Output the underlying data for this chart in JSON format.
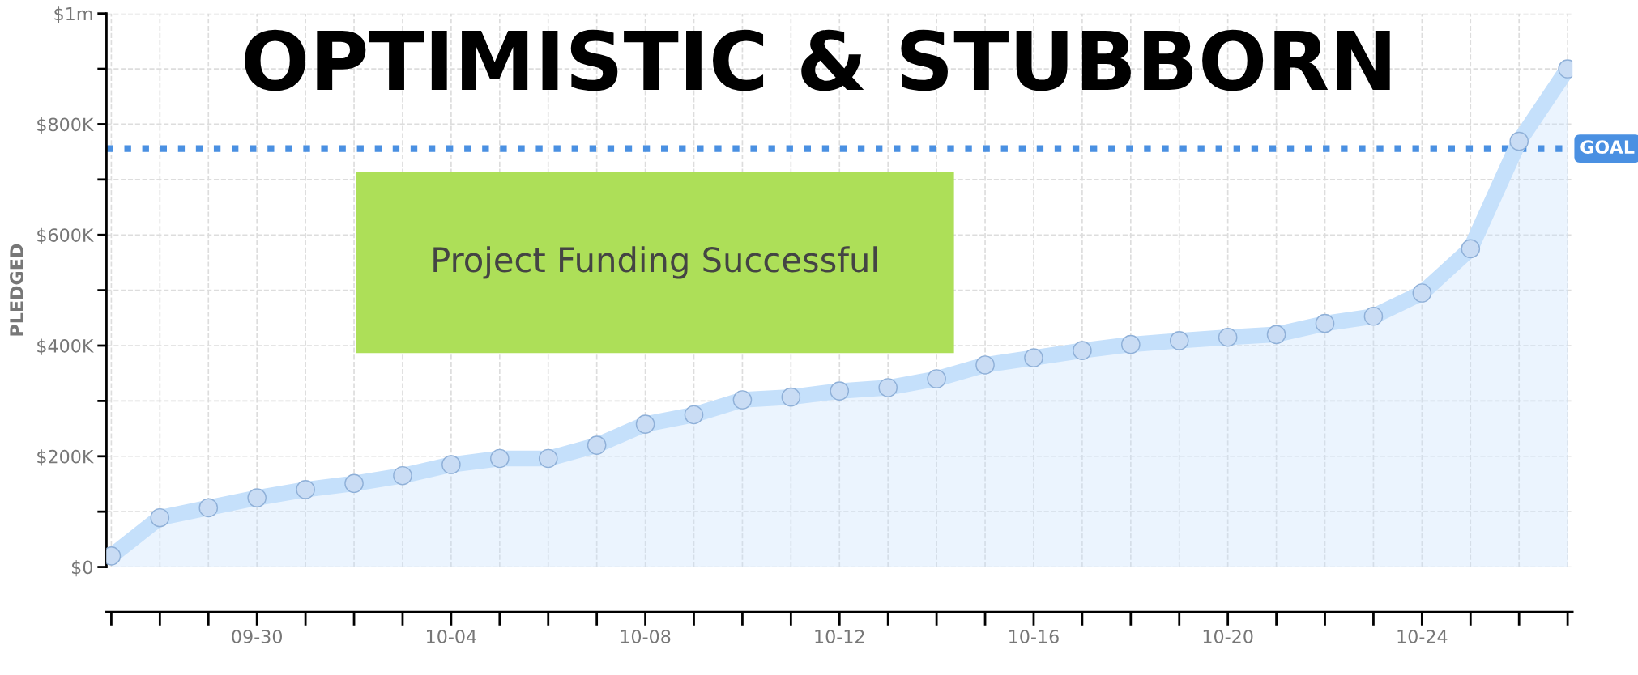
{
  "chart_data": {
    "type": "area",
    "title": "OPTIMISTIC & STUBBORN",
    "ylabel": "PLEDGED",
    "categories": [
      null,
      null,
      null,
      "09-30",
      null,
      null,
      null,
      "10-04",
      null,
      null,
      null,
      "10-08",
      null,
      null,
      null,
      "10-12",
      null,
      null,
      null,
      "10-16",
      null,
      null,
      null,
      "10-20",
      null,
      null,
      null,
      "10-24",
      null,
      null,
      null
    ],
    "series": [
      {
        "color": "#c5e0fb",
        "values": [
          20000,
          89000,
          107000,
          125000,
          140000,
          151000,
          165000,
          185000,
          196000,
          196000,
          220000,
          258000,
          275000,
          302000,
          307000,
          318000,
          324000,
          340000,
          365000,
          378000,
          391000,
          402000,
          409000,
          415000,
          420000,
          440000,
          453000,
          495000,
          575000,
          769000,
          900000
        ]
      }
    ],
    "ylim": [
      0,
      1000000
    ],
    "yticks": [
      {
        "value": 0,
        "label": "$0"
      },
      {
        "value": 100000,
        "label": null
      },
      {
        "value": 200000,
        "label": "$200K"
      },
      {
        "value": 300000,
        "label": null
      },
      {
        "value": 400000,
        "label": "$400K"
      },
      {
        "value": 500000,
        "label": null
      },
      {
        "value": 600000,
        "label": "$600K"
      },
      {
        "value": 700000,
        "label": null
      },
      {
        "value": 800000,
        "label": "$800K"
      },
      {
        "value": 900000,
        "label": null
      },
      {
        "value": 1000000,
        "label": "$1m"
      }
    ],
    "ref_lines": [
      {
        "axis": "y",
        "value": 756000,
        "label": "GOAL",
        "color": "#4a90e2",
        "line_style": "dotted"
      }
    ],
    "annotations": [
      "Project Funding Successful"
    ],
    "grid": true,
    "marker": "circle"
  }
}
